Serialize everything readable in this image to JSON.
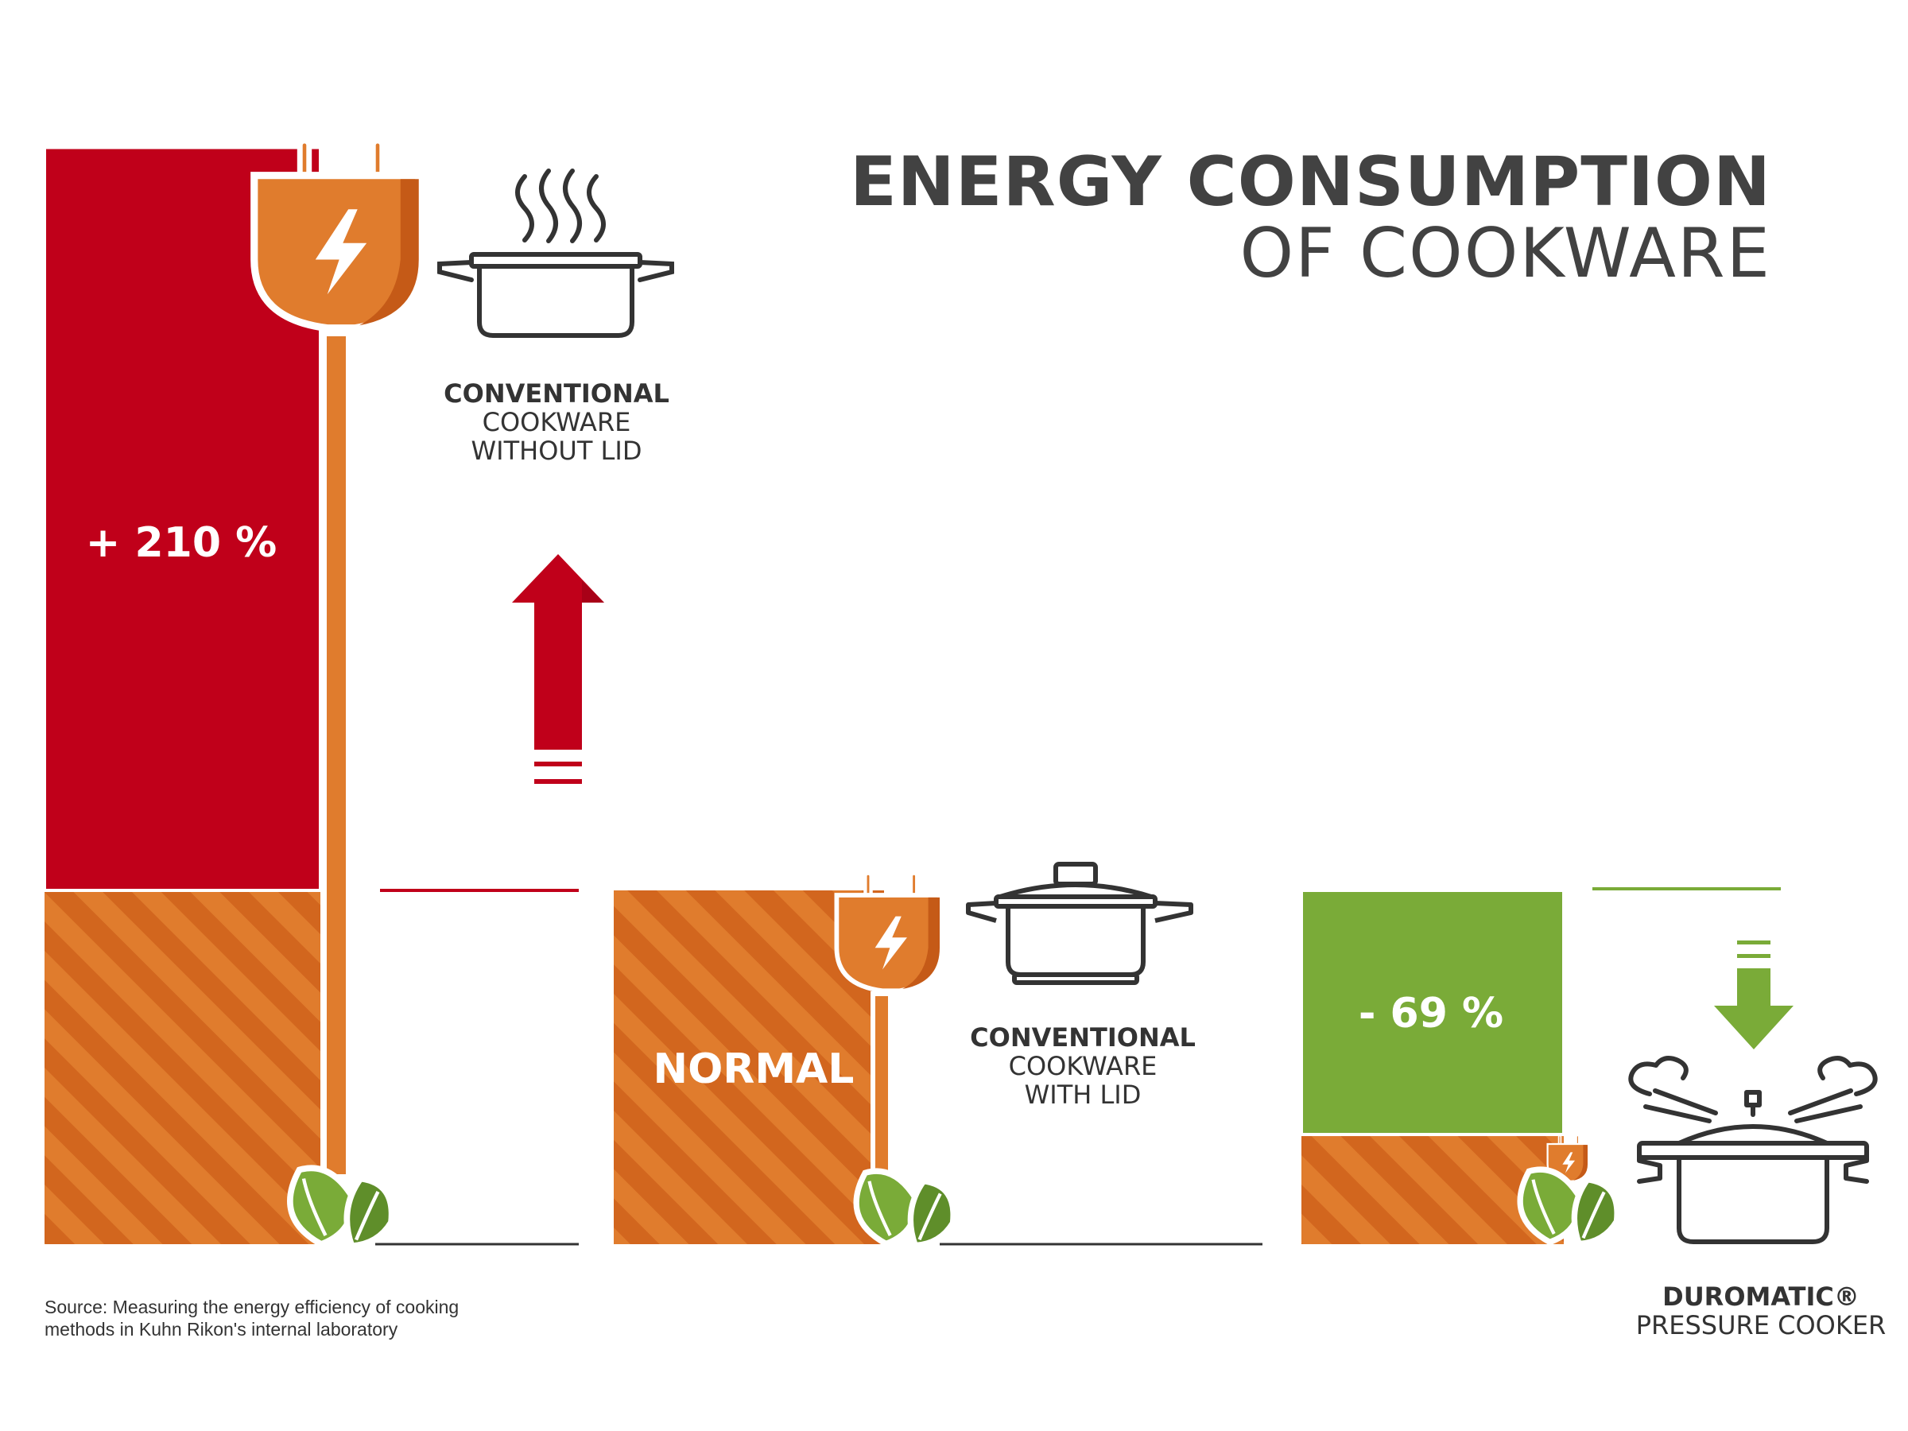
{
  "title": {
    "line1": "ENERGY CONSUMPTION",
    "line2": "OF COOKWARE"
  },
  "colors": {
    "red": "#c0001a",
    "orange": "#d2661e",
    "orange_stripe": "#e07c2d",
    "green": "#7aab38",
    "dark": "#424242"
  },
  "chart_data": {
    "type": "bar",
    "unit": "% relative to normal",
    "categories": [
      {
        "bold": "CONVENTIONAL",
        "lines": [
          "COOKWARE",
          "WITHOUT LID"
        ]
      },
      {
        "bold": "CONVENTIONAL",
        "lines": [
          "COOKWARE",
          "WITH LID"
        ]
      },
      {
        "bold": "DUROMATIC®",
        "lines": [
          "PRESSURE COOKER"
        ]
      }
    ],
    "series": [
      {
        "values": [
          100,
          100,
          31
        ]
      },
      {
        "values": [
          210,
          0,
          0
        ]
      },
      {
        "values": [
          0,
          0,
          69
        ]
      }
    ],
    "value_labels": [
      "+ 210 %",
      "NORMAL",
      "- 69 %"
    ],
    "arrows": [
      "up",
      "none",
      "down"
    ],
    "icons": [
      "plug-icon",
      "leaf-icon",
      "steaming-pot-icon",
      "lidded-pot-icon",
      "pressure-cooker-icon"
    ]
  },
  "source": {
    "line1": "Source: Measuring the energy efficiency of cooking",
    "line2": "methods in Kuhn Rikon's internal laboratory"
  }
}
